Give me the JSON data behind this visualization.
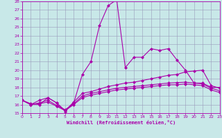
{
  "xlabel": "Windchill (Refroidissement éolien,°C)",
  "bg_color": "#c8e8e8",
  "grid_color": "#9999bb",
  "line_color": "#aa00aa",
  "xmin": 0,
  "xmax": 23,
  "ymin": 15,
  "ymax": 28,
  "series": [
    [
      16.5,
      16.0,
      16.5,
      16.8,
      16.2,
      15.2,
      16.2,
      19.5,
      21.0,
      25.2,
      27.5,
      28.2,
      20.3,
      21.5,
      21.5,
      22.5,
      22.3,
      22.5,
      21.2,
      20.0,
      18.5,
      18.5,
      18.0,
      18.0
    ],
    [
      16.5,
      16.1,
      16.0,
      16.8,
      16.2,
      15.3,
      16.3,
      17.3,
      17.5,
      17.8,
      18.1,
      18.3,
      18.5,
      18.6,
      18.8,
      19.0,
      19.2,
      19.4,
      19.5,
      19.8,
      19.9,
      20.0,
      18.2,
      17.9
    ],
    [
      16.5,
      16.0,
      16.2,
      16.5,
      15.9,
      15.4,
      16.1,
      17.0,
      17.3,
      17.5,
      17.7,
      17.9,
      18.0,
      18.1,
      18.2,
      18.3,
      18.4,
      18.5,
      18.55,
      18.6,
      18.5,
      18.4,
      17.9,
      17.6
    ],
    [
      16.5,
      16.0,
      16.1,
      16.3,
      15.8,
      15.3,
      16.0,
      16.8,
      17.1,
      17.3,
      17.5,
      17.7,
      17.8,
      17.9,
      18.0,
      18.1,
      18.2,
      18.3,
      18.3,
      18.4,
      18.3,
      18.2,
      17.7,
      17.4
    ]
  ]
}
